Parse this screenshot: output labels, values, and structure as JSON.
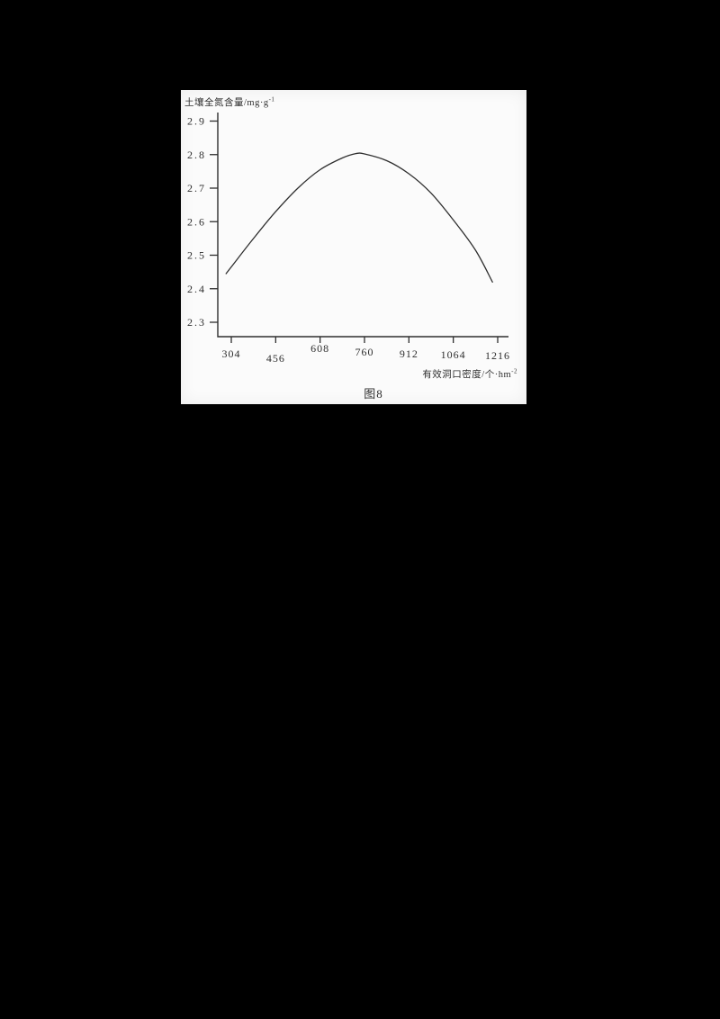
{
  "page": {
    "background_color": "#000000",
    "panel_color": "#fbfbfb",
    "ink_color": "#2e2e2e"
  },
  "figure": {
    "caption": "图8",
    "y_axis_title": {
      "text": "土壤全氮含量/mg·g",
      "superscript": "-1"
    },
    "x_axis_title": {
      "text": "有效洞口密度/个·hm",
      "superscript": "-2"
    }
  },
  "chart_data": {
    "type": "line",
    "title": "图8",
    "xlabel": "有效洞口密度/个·hm⁻²",
    "ylabel": "土壤全氮含量/mg·g⁻¹",
    "x_ticks": [
      304,
      456,
      608,
      760,
      912,
      1064,
      1216
    ],
    "x_tick_labels": [
      "304",
      "456",
      "608",
      "760",
      "912",
      "1064",
      "1216"
    ],
    "y_ticks": [
      2.3,
      2.4,
      2.5,
      2.6,
      2.7,
      2.8,
      2.9
    ],
    "y_tick_labels": [
      "2.3",
      "2.4",
      "2.5",
      "2.6",
      "2.7",
      "2.8",
      "2.9"
    ],
    "xlim": [
      258,
      1253
    ],
    "ylim": [
      2.26,
      2.93
    ],
    "grid": false,
    "legend": false,
    "series": [
      {
        "name": "soil-total-nitrogen-curve",
        "points": [
          [
            286,
            2.445
          ],
          [
            304,
            2.465
          ],
          [
            380,
            2.55
          ],
          [
            456,
            2.63
          ],
          [
            532,
            2.7
          ],
          [
            608,
            2.755
          ],
          [
            684,
            2.79
          ],
          [
            730,
            2.803
          ],
          [
            760,
            2.802
          ],
          [
            836,
            2.782
          ],
          [
            912,
            2.743
          ],
          [
            988,
            2.685
          ],
          [
            1064,
            2.605
          ],
          [
            1140,
            2.515
          ],
          [
            1198,
            2.42
          ]
        ]
      }
    ]
  }
}
